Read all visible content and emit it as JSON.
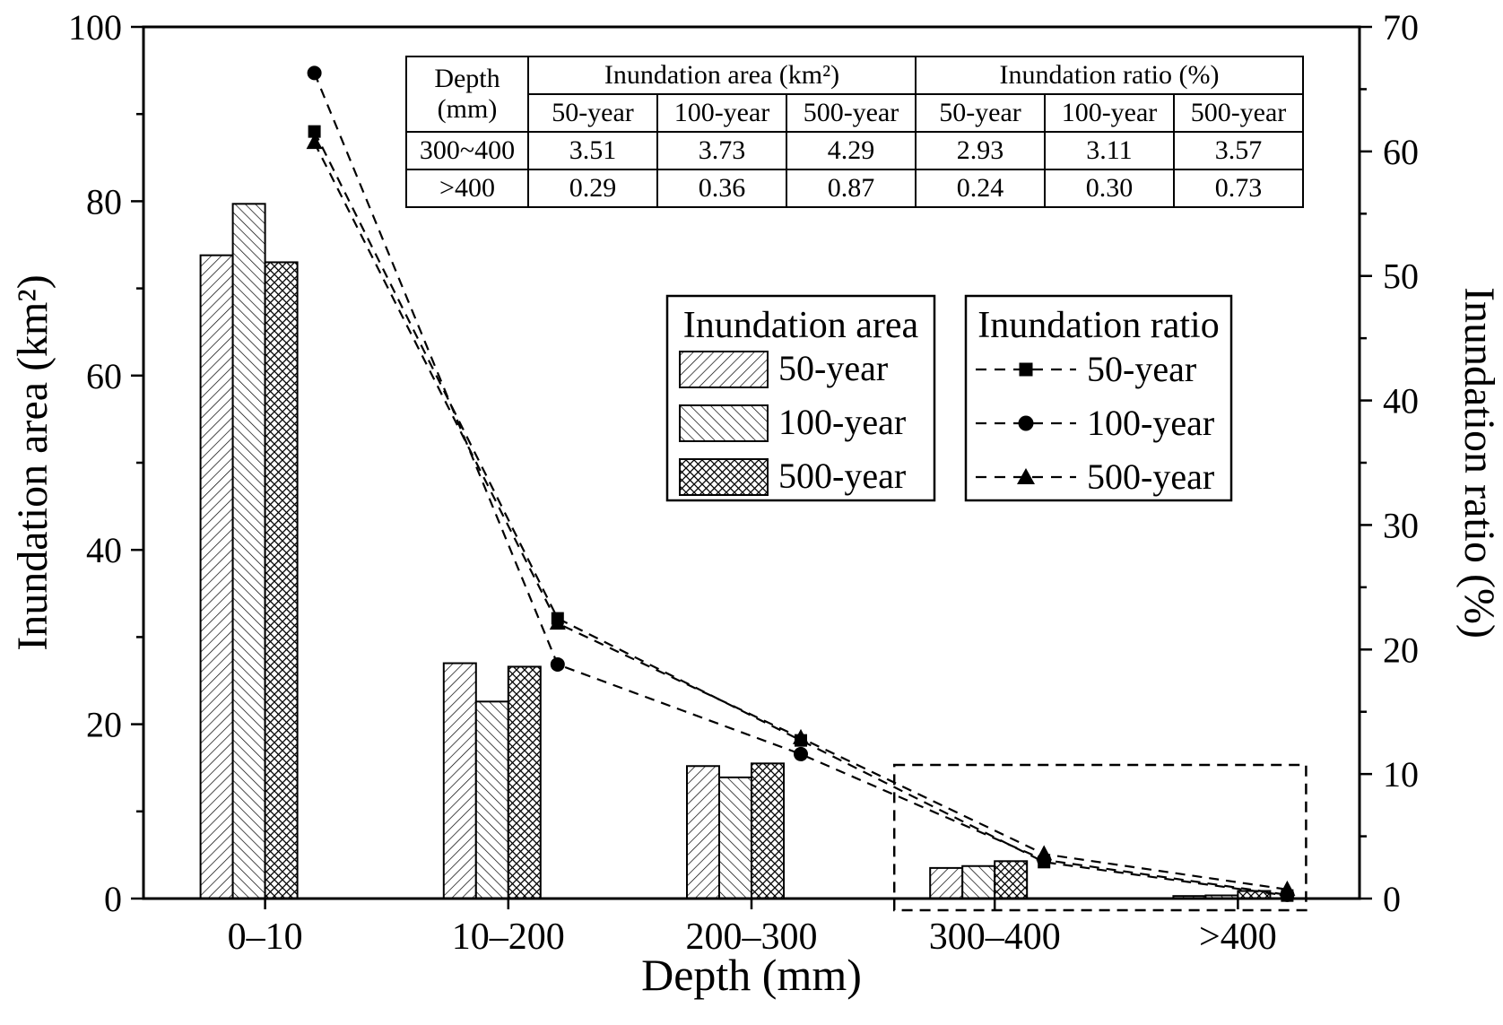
{
  "figure": {
    "x_axis_title": "Depth (mm)",
    "y_left_axis_title": "Inundation area (km²)",
    "y_right_axis_title": "Inundation ratio (%)"
  },
  "chart_data": {
    "type": "bar+line",
    "categories": [
      "0–10",
      "10–200",
      "200–300",
      "300–400",
      ">400"
    ],
    "x_label": "Depth (mm)",
    "y_left": {
      "label": "Inundation area (km²)",
      "min": 0,
      "max": 100,
      "major": 20,
      "minor": 10
    },
    "y_right": {
      "label": "Inundation ratio (%)",
      "min": 0,
      "max": 70,
      "major": 10,
      "minor": 5
    },
    "bar_series": [
      {
        "name": "50-year",
        "hatch": "diag-up",
        "axis": "left",
        "values": [
          73.8,
          27.0,
          15.2,
          3.51,
          0.29
        ]
      },
      {
        "name": "100-year",
        "hatch": "diag-down",
        "axis": "left",
        "values": [
          79.7,
          22.6,
          13.9,
          3.73,
          0.36
        ]
      },
      {
        "name": "500-year",
        "hatch": "cross",
        "axis": "left",
        "values": [
          73.0,
          26.6,
          15.5,
          4.29,
          0.87
        ]
      }
    ],
    "line_series": [
      {
        "name": "50-year",
        "marker": "square",
        "axis": "right",
        "values": [
          61.6,
          22.5,
          12.7,
          2.93,
          0.24
        ]
      },
      {
        "name": "100-year",
        "marker": "circle",
        "axis": "right",
        "values": [
          66.3,
          18.8,
          11.6,
          3.11,
          0.3
        ]
      },
      {
        "name": "500-year",
        "marker": "triangle",
        "axis": "right",
        "values": [
          60.7,
          22.1,
          12.9,
          3.57,
          0.73
        ]
      }
    ],
    "annotations": [
      "dashed rectangle highlighting the 300–400 and >400 depth ranges"
    ],
    "grid": false,
    "legend_position": "center"
  },
  "table": {
    "depth_header_line1": "Depth",
    "depth_header_line2": "(mm)",
    "area_header": "Inundation area (km²)",
    "ratio_header": "Inundation ratio (%)",
    "sub_headers": [
      "50-year",
      "100-year",
      "500-year",
      "50-year",
      "100-year",
      "500-year"
    ],
    "rows": [
      {
        "depth": "300~400",
        "values": [
          "3.51",
          "3.73",
          "4.29",
          "2.93",
          "3.11",
          "3.57"
        ]
      },
      {
        "depth": ">400",
        "values": [
          "0.29",
          "0.36",
          "0.87",
          "0.24",
          "0.30",
          "0.73"
        ]
      }
    ]
  },
  "legend_area": {
    "title": "Inundation area",
    "items": [
      {
        "label": "50-year",
        "hatch": "diag-up"
      },
      {
        "label": "100-year",
        "hatch": "diag-down"
      },
      {
        "label": "500-year",
        "hatch": "cross"
      }
    ]
  },
  "legend_ratio": {
    "title": "Inundation ratio",
    "items": [
      {
        "label": "50-year",
        "marker": "square"
      },
      {
        "label": "100-year",
        "marker": "circle"
      },
      {
        "label": "500-year",
        "marker": "triangle"
      }
    ]
  }
}
